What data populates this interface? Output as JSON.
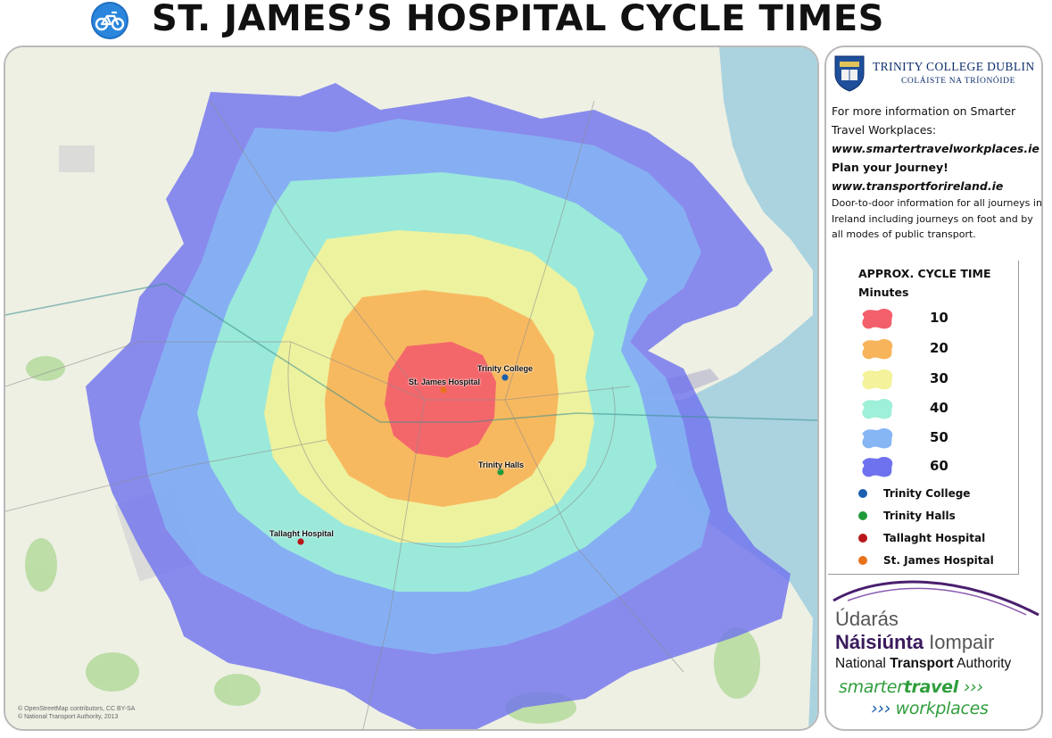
{
  "title": "ST. JAMES’S HOSPITAL CYCLE TIMES",
  "title_icon": "bicycle-icon",
  "map": {
    "credits": [
      "© OpenStreetMap contributors, CC BY-SA",
      "© National Transport Authority, 2013"
    ],
    "places": [
      {
        "name": "Trinity College",
        "color": "#1a5fb0"
      },
      {
        "name": "St. James Hospital",
        "color": "#e8731c"
      },
      {
        "name": "Trinity Halls",
        "color": "#1f9a3b"
      },
      {
        "name": "Tallaght Hospital",
        "color": "#b8161a"
      }
    ],
    "zone_colors": {
      "10": "#f2606c",
      "20": "#f7b45a",
      "30": "#f4f29a",
      "40": "#9ff0d8",
      "50": "#86b6f4",
      "60": "#6f72ee"
    }
  },
  "tcd": {
    "name": "TRINITY COLLEGE DUBLIN",
    "irish": "COLÁISTE NA TRÍONÓIDE",
    "crest_icon": "crest-icon"
  },
  "info": {
    "line1": "For more information on Smarter",
    "line2": "Travel Workplaces:",
    "url1": "www.smartertravelworkplaces.ie",
    "plan": "Plan your Journey!",
    "url2": "www.transportforireland.ie",
    "desc": "Door-to-door information for all journeys in Ireland including journeys on foot and by all modes of public transport."
  },
  "legend": {
    "title1": "APPROX. CYCLE TIME",
    "title2": "Minutes",
    "zones": [
      {
        "minutes": "10",
        "color": "#f2606c"
      },
      {
        "minutes": "20",
        "color": "#f7b45a"
      },
      {
        "minutes": "30",
        "color": "#f4f29a"
      },
      {
        "minutes": "40",
        "color": "#9ff0d8"
      },
      {
        "minutes": "50",
        "color": "#86b6f4"
      },
      {
        "minutes": "60",
        "color": "#6f72ee"
      }
    ],
    "points": [
      {
        "label": "Trinity College",
        "color": "#1a5fb0"
      },
      {
        "label": "Trinity Halls",
        "color": "#1f9a3b"
      },
      {
        "label": "Tallaght Hospital",
        "color": "#b8161a"
      },
      {
        "label": "St. James Hospital",
        "color": "#e8731c"
      }
    ]
  },
  "nta": {
    "line1": "Údarás",
    "line2_bold": "Náisiúnta",
    "line2_rest": " Iompair",
    "line3_a": "National ",
    "line3_b": "Transport",
    "line3_c": " Authority",
    "st1_a": "smarter",
    "st1_b": "travel",
    "st1_c": " ›››",
    "st2_a": "››› ",
    "st2_b": "workplaces"
  }
}
